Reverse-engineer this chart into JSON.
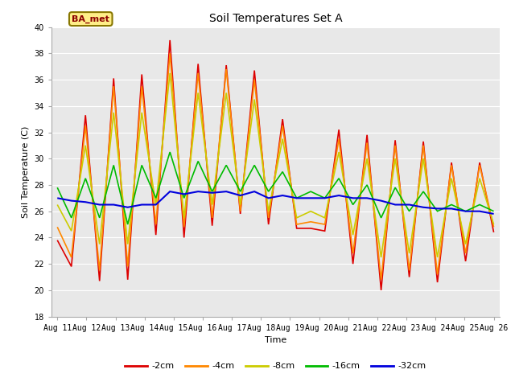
{
  "title": "Soil Temperatures Set A",
  "xlabel": "Time",
  "ylabel": "Soil Temperature (C)",
  "ylim": [
    18,
    40
  ],
  "plot_bg_color": "#e8e8e8",
  "label_text": "BA_met",
  "x_labels": [
    "Aug 11",
    "Aug 12",
    "Aug 13",
    "Aug 14",
    "Aug 15",
    "Aug 16",
    "Aug 17",
    "Aug 18",
    "Aug 19",
    "Aug 20",
    "Aug 21",
    "Aug 22",
    "Aug 23",
    "Aug 24",
    "Aug 25",
    "Aug 26"
  ],
  "series": [
    {
      "label": "-2cm",
      "color": "#dd0000",
      "linewidth": 1.2,
      "data": [
        23.8,
        21.8,
        33.3,
        20.7,
        36.1,
        20.8,
        36.4,
        24.2,
        39.0,
        24.0,
        37.2,
        24.9,
        37.1,
        25.8,
        36.7,
        25.0,
        33.0,
        24.7,
        24.7,
        24.5,
        32.2,
        22.0,
        31.8,
        20.0,
        31.4,
        21.0,
        31.3,
        20.6,
        29.7,
        22.2,
        29.7,
        24.4
      ]
    },
    {
      "label": "-4cm",
      "color": "#ff8800",
      "linewidth": 1.2,
      "data": [
        24.8,
        22.5,
        32.5,
        21.5,
        35.5,
        21.8,
        35.5,
        25.0,
        38.0,
        24.8,
        36.5,
        25.5,
        36.8,
        26.0,
        36.0,
        25.5,
        32.5,
        25.0,
        25.2,
        25.0,
        31.5,
        22.8,
        31.2,
        20.8,
        31.0,
        21.5,
        31.0,
        21.2,
        29.5,
        22.8,
        29.5,
        24.8
      ]
    },
    {
      "label": "-8cm",
      "color": "#cccc00",
      "linewidth": 1.2,
      "data": [
        26.5,
        24.5,
        31.0,
        23.5,
        33.5,
        23.5,
        33.5,
        26.5,
        36.5,
        25.5,
        35.0,
        26.5,
        35.0,
        26.5,
        34.5,
        26.0,
        31.5,
        25.5,
        26.0,
        25.5,
        30.5,
        24.2,
        30.0,
        22.5,
        30.0,
        22.8,
        30.0,
        22.5,
        28.5,
        23.5,
        28.5,
        25.0
      ]
    },
    {
      "label": "-16cm",
      "color": "#00bb00",
      "linewidth": 1.2,
      "data": [
        27.8,
        25.5,
        28.5,
        25.5,
        29.5,
        25.0,
        29.5,
        27.0,
        30.5,
        27.0,
        29.8,
        27.5,
        29.5,
        27.5,
        29.5,
        27.5,
        29.0,
        27.0,
        27.5,
        27.0,
        28.5,
        26.5,
        28.0,
        25.5,
        27.8,
        26.0,
        27.5,
        26.0,
        26.5,
        26.0,
        26.5,
        26.0
      ]
    },
    {
      "label": "-32cm",
      "color": "#0000dd",
      "linewidth": 1.5,
      "data": [
        27.0,
        26.8,
        26.7,
        26.5,
        26.5,
        26.3,
        26.5,
        26.5,
        27.5,
        27.3,
        27.5,
        27.4,
        27.5,
        27.2,
        27.5,
        27.0,
        27.2,
        27.0,
        27.0,
        27.0,
        27.2,
        27.0,
        27.0,
        26.8,
        26.5,
        26.5,
        26.3,
        26.2,
        26.2,
        26.0,
        26.0,
        25.8
      ]
    }
  ],
  "figsize": [
    6.4,
    4.8
  ],
  "dpi": 100,
  "title_fontsize": 10,
  "axis_label_fontsize": 8,
  "tick_fontsize": 7,
  "legend_fontsize": 8
}
